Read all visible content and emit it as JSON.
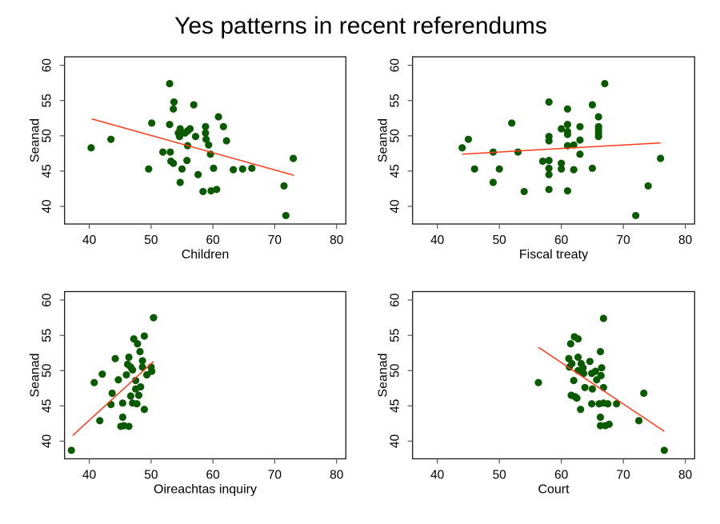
{
  "chart_data": {
    "type": "scatter",
    "title": "Yes patterns in recent referendums",
    "colors": {
      "points": "#0a5a00",
      "fit_line": "#ff3a1a"
    },
    "panels": [
      {
        "xlabel": "Children",
        "ylabel": "Seanad",
        "xlim": [
          36,
          81.5
        ],
        "ylim": [
          37.5,
          61.2
        ],
        "xticks": [
          40,
          50,
          60,
          70,
          80
        ],
        "yticks": [
          40,
          45,
          50,
          55,
          60
        ],
        "fit_line": [
          [
            40.4,
            52.4
          ],
          [
            73.1,
            44.4
          ]
        ],
        "points": [
          [
            40.3,
            48.3
          ],
          [
            43.5,
            49.5
          ],
          [
            49.6,
            45.3
          ],
          [
            50.1,
            51.8
          ],
          [
            51.9,
            47.7
          ],
          [
            53.0,
            57.4
          ],
          [
            53.0,
            51.6
          ],
          [
            53.1,
            47.7
          ],
          [
            53.2,
            46.4
          ],
          [
            53.6,
            46.1
          ],
          [
            53.7,
            54.8
          ],
          [
            53.6,
            53.8
          ],
          [
            54.4,
            50.4
          ],
          [
            54.7,
            51.0
          ],
          [
            54.6,
            49.9
          ],
          [
            54.7,
            43.4
          ],
          [
            55.0,
            45.3
          ],
          [
            55.5,
            50.4
          ],
          [
            55.9,
            50.7
          ],
          [
            56.3,
            51.0
          ],
          [
            55.9,
            48.6
          ],
          [
            55.8,
            46.5
          ],
          [
            56.9,
            54.4
          ],
          [
            57.2,
            49.9
          ],
          [
            57.6,
            44.5
          ],
          [
            58.4,
            42.1
          ],
          [
            58.8,
            51.3
          ],
          [
            58.8,
            50.4
          ],
          [
            58.9,
            49.5
          ],
          [
            59.3,
            48.7
          ],
          [
            59.6,
            47.4
          ],
          [
            59.7,
            42.2
          ],
          [
            60.1,
            45.4
          ],
          [
            60.6,
            42.4
          ],
          [
            60.9,
            52.7
          ],
          [
            61.7,
            51.3
          ],
          [
            62.2,
            49.3
          ],
          [
            63.3,
            45.2
          ],
          [
            64.8,
            45.3
          ],
          [
            66.3,
            45.4
          ],
          [
            71.5,
            42.9
          ],
          [
            71.8,
            38.7
          ],
          [
            73.0,
            46.8
          ]
        ]
      },
      {
        "xlabel": "Fiscal treaty",
        "ylabel": "Seanad",
        "xlim": [
          36,
          81.5
        ],
        "ylim": [
          37.5,
          61.2
        ],
        "xticks": [
          40,
          50,
          60,
          70,
          80
        ],
        "yticks": [
          40,
          45,
          50,
          55,
          60
        ],
        "fit_line": [
          [
            44,
            47.4
          ],
          [
            76,
            49.0
          ]
        ],
        "points": [
          [
            44,
            48.3
          ],
          [
            45,
            49.5
          ],
          [
            46,
            45.3
          ],
          [
            49,
            47.7
          ],
          [
            49,
            43.4
          ],
          [
            50,
            45.3
          ],
          [
            52,
            51.8
          ],
          [
            53,
            47.7
          ],
          [
            54,
            42.1
          ],
          [
            57,
            46.4
          ],
          [
            58,
            54.8
          ],
          [
            58,
            49.9
          ],
          [
            58,
            49.3
          ],
          [
            58,
            46.5
          ],
          [
            58,
            45.4
          ],
          [
            58,
            44.5
          ],
          [
            58,
            42.4
          ],
          [
            60,
            51.0
          ],
          [
            60,
            46.1
          ],
          [
            60,
            45.3
          ],
          [
            61,
            53.8
          ],
          [
            61,
            51.6
          ],
          [
            61,
            50.6
          ],
          [
            61,
            50.2
          ],
          [
            61,
            48.6
          ],
          [
            61,
            42.2
          ],
          [
            62,
            48.7
          ],
          [
            62,
            45.2
          ],
          [
            63,
            51.3
          ],
          [
            63,
            49.4
          ],
          [
            63,
            47.4
          ],
          [
            65,
            54.4
          ],
          [
            65,
            45.4
          ],
          [
            66,
            52.7
          ],
          [
            66,
            51.3
          ],
          [
            66,
            50.9
          ],
          [
            66,
            50.4
          ],
          [
            66,
            49.9
          ],
          [
            67,
            57.4
          ],
          [
            72,
            38.7
          ],
          [
            74,
            42.9
          ],
          [
            76,
            46.8
          ]
        ]
      },
      {
        "xlabel": "Oireachtas inquiry",
        "ylabel": "Seanad",
        "xlim": [
          36,
          81.5
        ],
        "ylim": [
          37.5,
          61.2
        ],
        "xticks": [
          40,
          50,
          60,
          70,
          80
        ],
        "yticks": [
          40,
          45,
          50,
          55,
          60
        ],
        "fit_line": [
          [
            37.3,
            40.8
          ],
          [
            50.4,
            51.3
          ]
        ],
        "points": [
          [
            37.1,
            38.7
          ],
          [
            40.8,
            48.3
          ],
          [
            42.1,
            49.5
          ],
          [
            41.7,
            42.9
          ],
          [
            43.7,
            46.8
          ],
          [
            43.5,
            45.2
          ],
          [
            44.2,
            51.7
          ],
          [
            44.7,
            48.7
          ],
          [
            45.4,
            45.4
          ],
          [
            45.4,
            43.4
          ],
          [
            45.1,
            42.1
          ],
          [
            45.6,
            42.2
          ],
          [
            46.4,
            42.1
          ],
          [
            46.0,
            49.4
          ],
          [
            46.4,
            51.9
          ],
          [
            46.2,
            50.9
          ],
          [
            46.7,
            50.5
          ],
          [
            47.0,
            50.1
          ],
          [
            47.2,
            54.5
          ],
          [
            47.8,
            53.8
          ],
          [
            48.9,
            54.9
          ],
          [
            48.2,
            52.7
          ],
          [
            48.6,
            51.4
          ],
          [
            48.6,
            50.5
          ],
          [
            50.4,
            57.5
          ],
          [
            47.5,
            48.6
          ],
          [
            47.5,
            47.4
          ],
          [
            48.3,
            47.7
          ],
          [
            48.0,
            46.5
          ],
          [
            46.7,
            46.4
          ],
          [
            47.0,
            45.4
          ],
          [
            47.7,
            45.3
          ],
          [
            48.9,
            44.5
          ],
          [
            49.3,
            49.4
          ],
          [
            50.1,
            49.9
          ],
          [
            50.0,
            50.5
          ]
        ]
      },
      {
        "xlabel": "Court",
        "ylabel": "Seanad",
        "xlim": [
          36,
          81.5
        ],
        "ylim": [
          37.5,
          61.2
        ],
        "xticks": [
          40,
          50,
          60,
          70,
          80
        ],
        "yticks": [
          40,
          45,
          50,
          55,
          60
        ],
        "fit_line": [
          [
            56.3,
            53.3
          ],
          [
            76.6,
            41.4
          ]
        ],
        "points": [
          [
            56.3,
            48.3
          ],
          [
            61.2,
            51.7
          ],
          [
            61.5,
            53.8
          ],
          [
            62.1,
            54.8
          ],
          [
            62.7,
            54.5
          ],
          [
            61.3,
            50.5
          ],
          [
            61.7,
            51.0
          ],
          [
            62.0,
            48.6
          ],
          [
            61.6,
            46.5
          ],
          [
            62.2,
            46.3
          ],
          [
            62.5,
            46.1
          ],
          [
            62.7,
            51.9
          ],
          [
            62.7,
            50.0
          ],
          [
            63.2,
            51.0
          ],
          [
            63.5,
            50.4
          ],
          [
            63.6,
            49.6
          ],
          [
            63.1,
            44.5
          ],
          [
            63.8,
            47.6
          ],
          [
            64.6,
            51.3
          ],
          [
            64.9,
            49.6
          ],
          [
            65.0,
            47.4
          ],
          [
            64.9,
            45.3
          ],
          [
            65.5,
            49.9
          ],
          [
            65.7,
            48.7
          ],
          [
            66.3,
            52.7
          ],
          [
            66.4,
            49.3
          ],
          [
            66.5,
            50.4
          ],
          [
            66.3,
            43.4
          ],
          [
            66.3,
            42.2
          ],
          [
            66.1,
            45.3
          ],
          [
            66.8,
            45.4
          ],
          [
            66.8,
            57.4
          ],
          [
            66.8,
            47.6
          ],
          [
            67.1,
            42.2
          ],
          [
            67.7,
            42.4
          ],
          [
            67.5,
            45.3
          ],
          [
            68.9,
            45.3
          ],
          [
            72.5,
            42.9
          ],
          [
            73.3,
            46.8
          ],
          [
            76.6,
            38.7
          ]
        ]
      }
    ]
  }
}
